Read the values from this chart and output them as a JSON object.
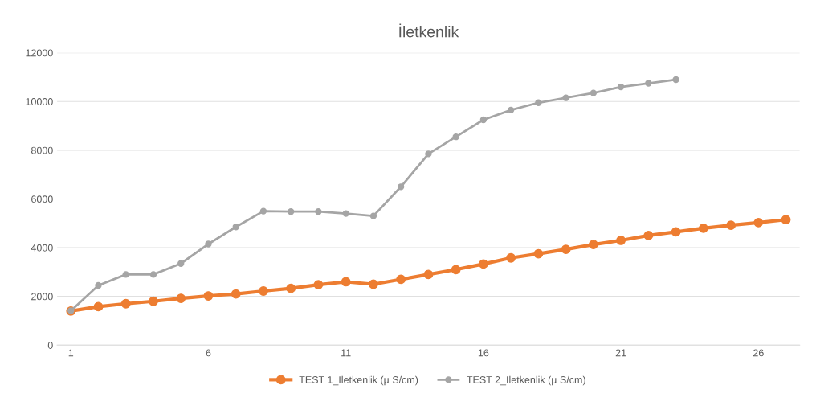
{
  "chart_data": {
    "type": "line",
    "title": "İletkenlik",
    "categories": [
      "1",
      null,
      null,
      null,
      null,
      "6",
      null,
      null,
      null,
      null,
      "11",
      null,
      null,
      null,
      null,
      "16",
      null,
      null,
      null,
      null,
      "21",
      null,
      null,
      null,
      null,
      "26",
      null
    ],
    "series": [
      {
        "name": "TEST 1_İletkenlik (µ S/cm)",
        "color": "#ed7d31",
        "values": [
          1400,
          1580,
          1700,
          1800,
          1920,
          2020,
          2100,
          2220,
          2330,
          2480,
          2600,
          2500,
          2700,
          2900,
          3100,
          3330,
          3580,
          3750,
          3930,
          4130,
          4300,
          4500,
          4650,
          4800,
          4920,
          5030,
          5150
        ]
      },
      {
        "name": "TEST 2_İletkenlik (µ S/cm)",
        "color": "#a5a5a5",
        "values": [
          1410,
          2450,
          2900,
          2900,
          3350,
          4150,
          4850,
          5500,
          5480,
          5480,
          5400,
          5300,
          6500,
          7850,
          8550,
          9250,
          9650,
          9950,
          10150,
          10350,
          10600,
          10750,
          10900,
          null,
          null,
          null,
          null
        ]
      }
    ],
    "ylim": [
      0,
      12000
    ],
    "yticks": [
      0,
      2000,
      4000,
      6000,
      8000,
      10000,
      12000
    ],
    "grid": "y",
    "legend": "bottom",
    "marker": "circle",
    "line_style": "solid"
  }
}
